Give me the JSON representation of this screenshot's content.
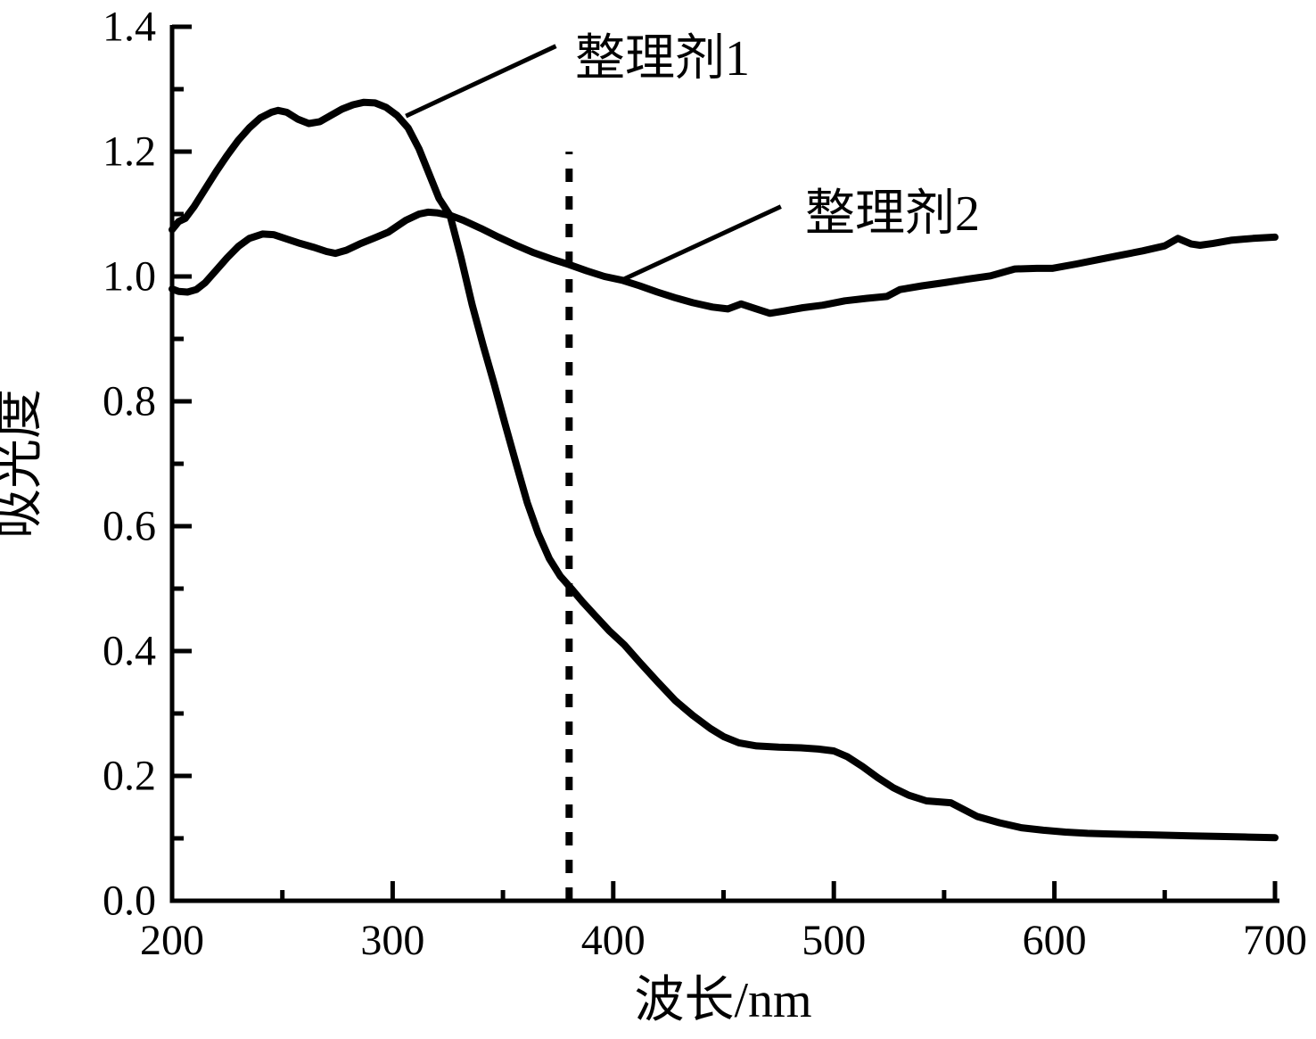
{
  "figure": {
    "background": "#ffffff",
    "line_color": "#000000",
    "text_color": "#000000"
  },
  "chart_data": {
    "type": "line",
    "title": "",
    "xlabel": "波长/nm",
    "ylabel": "吸光度",
    "xlim": [
      200,
      700
    ],
    "ylim": [
      0.0,
      1.4
    ],
    "x_major_ticks": [
      200,
      300,
      400,
      500,
      600,
      700
    ],
    "x_minor_ticks": [
      250,
      350,
      450,
      550,
      650
    ],
    "y_major_ticks": [
      0.0,
      0.2,
      0.4,
      0.6,
      0.8,
      1.0,
      1.2,
      1.4
    ],
    "y_minor_ticks": [
      0.1,
      0.3,
      0.5,
      0.7,
      0.9,
      1.1,
      1.3
    ],
    "grid": false,
    "legend_position": "inline-annotations",
    "annotations": {
      "vertical_dotted_line": {
        "x": 380,
        "y_from": 0.0,
        "y_to": 1.2
      },
      "leaders": [
        {
          "series": "整理剂1",
          "from_xy": [
            306,
            1.257
          ],
          "to_xy": [
            374,
            1.369
          ]
        },
        {
          "series": "整理剂2",
          "from_xy": [
            405,
            0.996
          ],
          "to_xy": [
            476,
            1.112
          ]
        }
      ]
    },
    "series": [
      {
        "name": "整理剂1",
        "points": [
          [
            200,
            1.075
          ],
          [
            203,
            1.088
          ],
          [
            206,
            1.093
          ],
          [
            210,
            1.112
          ],
          [
            215,
            1.14
          ],
          [
            220,
            1.168
          ],
          [
            225,
            1.194
          ],
          [
            230,
            1.218
          ],
          [
            235,
            1.238
          ],
          [
            240,
            1.254
          ],
          [
            245,
            1.263
          ],
          [
            248,
            1.266
          ],
          [
            252,
            1.263
          ],
          [
            257,
            1.252
          ],
          [
            262,
            1.245
          ],
          [
            267,
            1.248
          ],
          [
            272,
            1.258
          ],
          [
            277,
            1.268
          ],
          [
            282,
            1.275
          ],
          [
            287,
            1.279
          ],
          [
            292,
            1.278
          ],
          [
            297,
            1.271
          ],
          [
            302,
            1.258
          ],
          [
            307,
            1.238
          ],
          [
            312,
            1.204
          ],
          [
            317,
            1.16
          ],
          [
            321,
            1.125
          ],
          [
            326,
            1.098
          ],
          [
            331,
            1.03
          ],
          [
            336,
            0.955
          ],
          [
            341,
            0.89
          ],
          [
            346,
            0.828
          ],
          [
            351,
            0.763
          ],
          [
            356,
            0.7
          ],
          [
            361,
            0.638
          ],
          [
            366,
            0.588
          ],
          [
            371,
            0.548
          ],
          [
            376,
            0.52
          ],
          [
            381,
            0.5
          ],
          [
            386,
            0.479
          ],
          [
            392,
            0.456
          ],
          [
            398,
            0.433
          ],
          [
            405,
            0.41
          ],
          [
            412,
            0.382
          ],
          [
            420,
            0.351
          ],
          [
            428,
            0.321
          ],
          [
            436,
            0.297
          ],
          [
            444,
            0.276
          ],
          [
            450,
            0.263
          ],
          [
            457,
            0.253
          ],
          [
            465,
            0.248
          ],
          [
            475,
            0.246
          ],
          [
            485,
            0.245
          ],
          [
            493,
            0.243
          ],
          [
            500,
            0.24
          ],
          [
            506,
            0.231
          ],
          [
            513,
            0.215
          ],
          [
            520,
            0.197
          ],
          [
            527,
            0.181
          ],
          [
            534,
            0.169
          ],
          [
            542,
            0.16
          ],
          [
            553,
            0.157
          ],
          [
            565,
            0.135
          ],
          [
            575,
            0.125
          ],
          [
            585,
            0.117
          ],
          [
            595,
            0.113
          ],
          [
            605,
            0.11
          ],
          [
            615,
            0.108
          ],
          [
            625,
            0.107
          ],
          [
            637,
            0.106
          ],
          [
            650,
            0.105
          ],
          [
            662,
            0.104
          ],
          [
            675,
            0.103
          ],
          [
            688,
            0.102
          ],
          [
            700,
            0.101
          ]
        ]
      },
      {
        "name": "整理剂2",
        "points": [
          [
            200,
            0.98
          ],
          [
            203,
            0.976
          ],
          [
            207,
            0.975
          ],
          [
            211,
            0.979
          ],
          [
            215,
            0.99
          ],
          [
            220,
            1.01
          ],
          [
            225,
            1.03
          ],
          [
            230,
            1.048
          ],
          [
            235,
            1.061
          ],
          [
            241,
            1.068
          ],
          [
            246,
            1.067
          ],
          [
            252,
            1.06
          ],
          [
            258,
            1.053
          ],
          [
            264,
            1.047
          ],
          [
            270,
            1.04
          ],
          [
            274,
            1.037
          ],
          [
            279,
            1.042
          ],
          [
            285,
            1.052
          ],
          [
            292,
            1.062
          ],
          [
            298,
            1.071
          ],
          [
            306,
            1.09
          ],
          [
            312,
            1.1
          ],
          [
            316,
            1.103
          ],
          [
            320,
            1.102
          ],
          [
            326,
            1.098
          ],
          [
            332,
            1.09
          ],
          [
            340,
            1.077
          ],
          [
            348,
            1.063
          ],
          [
            356,
            1.05
          ],
          [
            364,
            1.038
          ],
          [
            372,
            1.028
          ],
          [
            380,
            1.019
          ],
          [
            388,
            1.009
          ],
          [
            396,
            1.0
          ],
          [
            404,
            0.994
          ],
          [
            412,
            0.985
          ],
          [
            420,
            0.975
          ],
          [
            428,
            0.966
          ],
          [
            436,
            0.958
          ],
          [
            445,
            0.951
          ],
          [
            452,
            0.948
          ],
          [
            458,
            0.956
          ],
          [
            464,
            0.949
          ],
          [
            471,
            0.941
          ],
          [
            478,
            0.945
          ],
          [
            486,
            0.95
          ],
          [
            495,
            0.954
          ],
          [
            505,
            0.961
          ],
          [
            515,
            0.965
          ],
          [
            524,
            0.968
          ],
          [
            530,
            0.979
          ],
          [
            540,
            0.985
          ],
          [
            550,
            0.99
          ],
          [
            561,
            0.996
          ],
          [
            571,
            1.001
          ],
          [
            582,
            1.012
          ],
          [
            592,
            1.013
          ],
          [
            599,
            1.013
          ],
          [
            610,
            1.02
          ],
          [
            620,
            1.027
          ],
          [
            630,
            1.034
          ],
          [
            640,
            1.041
          ],
          [
            650,
            1.049
          ],
          [
            656,
            1.061
          ],
          [
            662,
            1.052
          ],
          [
            666,
            1.05
          ],
          [
            672,
            1.053
          ],
          [
            680,
            1.058
          ],
          [
            690,
            1.061
          ],
          [
            700,
            1.063
          ]
        ]
      }
    ]
  }
}
